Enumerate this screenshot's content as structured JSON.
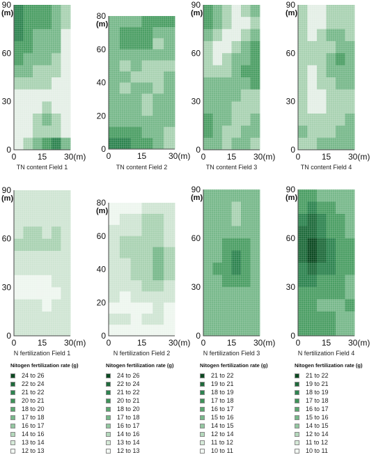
{
  "chart_data": [
    {
      "type": "heatmap",
      "caption": "TN content Field 1",
      "x_ticks": [
        "0",
        "15",
        "30(m)"
      ],
      "y_ticks": [
        "0",
        "30",
        "60",
        "90"
      ],
      "y_unit": "(m)",
      "ylim": [
        0,
        90
      ],
      "xlim": [
        0,
        30
      ],
      "palette": [
        "#1f6b3c",
        "#2e8450",
        "#4b9e64",
        "#77b88a",
        "#a9d2b2",
        "#e4efe6"
      ],
      "grid": [
        [
          1,
          2,
          2,
          2,
          3,
          4
        ],
        [
          1,
          2,
          2,
          2,
          3,
          4
        ],
        [
          1,
          2,
          3,
          3,
          3,
          5
        ],
        [
          2,
          2,
          3,
          3,
          3,
          5
        ],
        [
          2,
          3,
          3,
          3,
          4,
          5
        ],
        [
          3,
          3,
          4,
          4,
          4,
          5
        ],
        [
          4,
          4,
          4,
          4,
          5,
          5
        ],
        [
          5,
          5,
          5,
          5,
          5,
          5
        ],
        [
          5,
          5,
          5,
          4,
          5,
          5
        ],
        [
          5,
          5,
          4,
          3,
          4,
          5
        ],
        [
          5,
          5,
          4,
          4,
          4,
          5
        ],
        [
          5,
          4,
          3,
          2,
          1,
          3
        ]
      ]
    },
    {
      "type": "heatmap",
      "caption": "TN content Field 2",
      "x_ticks": [
        "0",
        "15",
        "30(m)"
      ],
      "y_ticks": [
        "0",
        "20",
        "40",
        "60",
        "80"
      ],
      "y_unit": "(m)",
      "ylim": [
        0,
        80
      ],
      "xlim": [
        0,
        30
      ],
      "palette": [
        "#1f6b3c",
        "#2e8450",
        "#4b9e64",
        "#77b88a",
        "#a9d2b2",
        "#e4efe6"
      ],
      "grid": [
        [
          3,
          3,
          3,
          2,
          2,
          2
        ],
        [
          3,
          2,
          2,
          2,
          3,
          3
        ],
        [
          3,
          2,
          2,
          2,
          4,
          3
        ],
        [
          3,
          3,
          3,
          3,
          3,
          3
        ],
        [
          3,
          4,
          3,
          4,
          4,
          4
        ],
        [
          3,
          3,
          4,
          4,
          4,
          3
        ],
        [
          3,
          4,
          3,
          3,
          4,
          3
        ],
        [
          3,
          3,
          3,
          4,
          3,
          3
        ],
        [
          3,
          3,
          3,
          4,
          3,
          3
        ],
        [
          3,
          3,
          3,
          3,
          3,
          3
        ],
        [
          2,
          2,
          2,
          3,
          3,
          4
        ],
        [
          1,
          1,
          2,
          2,
          3,
          4
        ]
      ]
    },
    {
      "type": "heatmap",
      "caption": "TN content Field 3",
      "x_ticks": [
        "0",
        "15",
        "30(m)"
      ],
      "y_ticks": [
        "0",
        "30",
        "60",
        "90"
      ],
      "y_unit": "(m)",
      "ylim": [
        0,
        90
      ],
      "xlim": [
        0,
        30
      ],
      "palette": [
        "#1f6b3c",
        "#2e8450",
        "#4b9e64",
        "#77b88a",
        "#a9d2b2",
        "#e4efe6"
      ],
      "grid": [
        [
          2,
          3,
          4,
          5,
          4,
          3
        ],
        [
          2,
          3,
          4,
          5,
          5,
          4
        ],
        [
          3,
          4,
          5,
          5,
          4,
          3
        ],
        [
          4,
          5,
          5,
          4,
          3,
          2
        ],
        [
          4,
          5,
          4,
          3,
          3,
          2
        ],
        [
          4,
          4,
          4,
          3,
          2,
          2
        ],
        [
          3,
          3,
          3,
          3,
          3,
          2
        ],
        [
          3,
          3,
          3,
          3,
          4,
          4
        ],
        [
          3,
          3,
          3,
          4,
          4,
          4
        ],
        [
          2,
          3,
          3,
          4,
          4,
          3
        ],
        [
          2,
          3,
          4,
          4,
          3,
          3
        ],
        [
          3,
          3,
          4,
          3,
          3,
          4
        ]
      ]
    },
    {
      "type": "heatmap",
      "caption": "TN content Field 4",
      "x_ticks": [
        "0",
        "15",
        "30(m)"
      ],
      "y_ticks": [
        "0",
        "30",
        "60",
        "90"
      ],
      "y_unit": "(m)",
      "ylim": [
        0,
        90
      ],
      "xlim": [
        0,
        30
      ],
      "palette": [
        "#1f6b3c",
        "#2e8450",
        "#4b9e64",
        "#77b88a",
        "#a9d2b2",
        "#e4efe6"
      ],
      "grid": [
        [
          4,
          5,
          5,
          4,
          4,
          4
        ],
        [
          4,
          5,
          5,
          4,
          4,
          4
        ],
        [
          4,
          5,
          4,
          3,
          3,
          4
        ],
        [
          4,
          4,
          4,
          4,
          3,
          3
        ],
        [
          4,
          4,
          4,
          3,
          2,
          3
        ],
        [
          4,
          5,
          4,
          3,
          3,
          3
        ],
        [
          4,
          5,
          4,
          4,
          3,
          3
        ],
        [
          4,
          5,
          5,
          4,
          4,
          4
        ],
        [
          4,
          5,
          5,
          4,
          4,
          4
        ],
        [
          4,
          4,
          4,
          4,
          4,
          3
        ],
        [
          3,
          4,
          4,
          4,
          3,
          3
        ],
        [
          4,
          4,
          3,
          3,
          3,
          3
        ]
      ]
    },
    {
      "type": "heatmap",
      "caption": "N fertilization Field 1",
      "x_ticks": [
        "0",
        "15",
        "30(m)"
      ],
      "y_ticks": [
        "0",
        "30",
        "60",
        "90"
      ],
      "y_unit": "(m)",
      "ylim": [
        0,
        90
      ],
      "xlim": [
        0,
        30
      ],
      "palette": [
        "#0c4a22",
        "#1f6b3c",
        "#2e8450",
        "#4b9e64",
        "#77b88a",
        "#a9d2b2",
        "#cfe5d3",
        "#eef6ef"
      ],
      "grid": [
        [
          6,
          6,
          6,
          6,
          6,
          6
        ],
        [
          6,
          6,
          6,
          6,
          6,
          6
        ],
        [
          6,
          6,
          6,
          6,
          6,
          6
        ],
        [
          6,
          5,
          5,
          6,
          5,
          6
        ],
        [
          5,
          5,
          5,
          5,
          5,
          6
        ],
        [
          6,
          6,
          6,
          6,
          6,
          6
        ],
        [
          6,
          6,
          6,
          6,
          6,
          6
        ],
        [
          7,
          7,
          7,
          7,
          6,
          6
        ],
        [
          7,
          7,
          7,
          7,
          7,
          6
        ],
        [
          6,
          6,
          6,
          7,
          6,
          6
        ],
        [
          6,
          6,
          6,
          6,
          6,
          6
        ],
        [
          6,
          6,
          6,
          6,
          6,
          6
        ]
      ]
    },
    {
      "type": "heatmap",
      "caption": "N fertilization Field 2",
      "x_ticks": [
        "0",
        "15",
        "30(m)"
      ],
      "y_ticks": [
        "0",
        "20",
        "40",
        "60",
        "80"
      ],
      "y_unit": "(m)",
      "ylim": [
        0,
        80
      ],
      "xlim": [
        0,
        30
      ],
      "palette": [
        "#0c4a22",
        "#1f6b3c",
        "#2e8450",
        "#4b9e64",
        "#77b88a",
        "#a9d2b2",
        "#cfe5d3",
        "#eef6ef"
      ],
      "grid": [
        [
          7,
          7,
          7,
          6,
          6,
          6
        ],
        [
          7,
          6,
          6,
          5,
          5,
          6
        ],
        [
          6,
          6,
          6,
          5,
          5,
          6
        ],
        [
          6,
          5,
          5,
          5,
          5,
          6
        ],
        [
          6,
          5,
          5,
          5,
          4,
          5
        ],
        [
          6,
          6,
          5,
          5,
          4,
          5
        ],
        [
          6,
          6,
          5,
          5,
          4,
          5
        ],
        [
          6,
          6,
          6,
          5,
          5,
          6
        ],
        [
          6,
          7,
          6,
          6,
          6,
          6
        ],
        [
          7,
          7,
          7,
          7,
          6,
          7
        ],
        [
          6,
          6,
          7,
          6,
          6,
          7
        ],
        [
          7,
          7,
          7,
          7,
          7,
          7
        ]
      ]
    },
    {
      "type": "heatmap",
      "caption": "N fertilization Field 3",
      "x_ticks": [
        "0",
        "15",
        "30(m)"
      ],
      "y_ticks": [
        "0",
        "30",
        "60",
        "90"
      ],
      "y_unit": "(m)",
      "ylim": [
        0,
        90
      ],
      "xlim": [
        0,
        30
      ],
      "palette": [
        "#0c4a22",
        "#1f6b3c",
        "#2e8450",
        "#4b9e64",
        "#77b88a",
        "#a9d2b2",
        "#cfe5d3",
        "#eef6ef"
      ],
      "grid": [
        [
          4,
          4,
          4,
          4,
          4,
          4
        ],
        [
          4,
          4,
          4,
          5,
          4,
          4
        ],
        [
          4,
          4,
          4,
          5,
          4,
          4
        ],
        [
          4,
          4,
          4,
          4,
          4,
          4
        ],
        [
          4,
          4,
          3,
          3,
          3,
          4
        ],
        [
          4,
          4,
          3,
          2,
          3,
          4
        ],
        [
          4,
          3,
          3,
          2,
          3,
          4
        ],
        [
          4,
          4,
          3,
          3,
          3,
          4
        ],
        [
          4,
          4,
          4,
          4,
          4,
          4
        ],
        [
          4,
          4,
          4,
          4,
          4,
          4
        ],
        [
          4,
          4,
          4,
          4,
          4,
          4
        ],
        [
          4,
          4,
          4,
          4,
          4,
          4
        ]
      ]
    },
    {
      "type": "heatmap",
      "caption": "N fertilization Field 4",
      "x_ticks": [
        "0",
        "15",
        "30(m)"
      ],
      "y_ticks": [
        "0",
        "30",
        "60",
        "90"
      ],
      "y_unit": "(m)",
      "ylim": [
        0,
        90
      ],
      "xlim": [
        0,
        30
      ],
      "palette": [
        "#0c4a22",
        "#1f6b3c",
        "#2e8450",
        "#4b9e64",
        "#77b88a",
        "#a9d2b2",
        "#cfe5d3",
        "#eef6ef"
      ],
      "grid": [
        [
          3,
          3,
          4,
          4,
          4,
          4
        ],
        [
          3,
          2,
          3,
          3,
          4,
          4
        ],
        [
          2,
          1,
          2,
          3,
          3,
          4
        ],
        [
          1,
          1,
          2,
          3,
          3,
          4
        ],
        [
          1,
          0,
          1,
          2,
          3,
          3
        ],
        [
          1,
          0,
          1,
          2,
          3,
          3
        ],
        [
          2,
          1,
          2,
          2,
          3,
          3
        ],
        [
          2,
          2,
          3,
          3,
          3,
          4
        ],
        [
          3,
          3,
          3,
          3,
          3,
          4
        ],
        [
          3,
          3,
          4,
          4,
          4,
          3
        ],
        [
          3,
          3,
          3,
          3,
          4,
          4
        ],
        [
          3,
          3,
          3,
          3,
          4,
          4
        ]
      ]
    }
  ],
  "legends": [
    {
      "title": "Nitogen fertilization rate (g)",
      "items": [
        {
          "label": "24 to 26",
          "color": "#0c4a22"
        },
        {
          "label": "22 to 24",
          "color": "#1f6b3c"
        },
        {
          "label": "21 to 22",
          "color": "#2e8450"
        },
        {
          "label": "20 to 21",
          "color": "#3f935a"
        },
        {
          "label": "18 to 20",
          "color": "#5aa770"
        },
        {
          "label": "17 to 18",
          "color": "#77b88a"
        },
        {
          "label": "16 to 17",
          "color": "#94c8a1"
        },
        {
          "label": "14 to 16",
          "color": "#b4d9bc"
        },
        {
          "label": "13 to 14",
          "color": "#d6ead9"
        },
        {
          "label": "12 to 13",
          "color": "#f2f8f3"
        }
      ]
    },
    {
      "title": "Nitogen fertilization rate (g)",
      "items": [
        {
          "label": "24 to 26",
          "color": "#0c4a22"
        },
        {
          "label": "22 to 24",
          "color": "#1f6b3c"
        },
        {
          "label": "21 to 22",
          "color": "#2e8450"
        },
        {
          "label": "20 to 21",
          "color": "#3f935a"
        },
        {
          "label": "18 to 20",
          "color": "#5aa770"
        },
        {
          "label": "17 to 18",
          "color": "#77b88a"
        },
        {
          "label": "16 to 17",
          "color": "#94c8a1"
        },
        {
          "label": "14 to 16",
          "color": "#b4d9bc"
        },
        {
          "label": "13 to 14",
          "color": "#d6ead9"
        },
        {
          "label": "12 to 13",
          "color": "#f2f8f3"
        }
      ]
    },
    {
      "title": "Nitogen fertilization rate (g)",
      "items": [
        {
          "label": "21 to 22",
          "color": "#0c4a22"
        },
        {
          "label": "19 to 21",
          "color": "#1f6b3c"
        },
        {
          "label": "18 to 19",
          "color": "#2e8450"
        },
        {
          "label": "17 to 18",
          "color": "#3f935a"
        },
        {
          "label": "16 to 17",
          "color": "#5aa770"
        },
        {
          "label": "15 to 16",
          "color": "#77b88a"
        },
        {
          "label": "14 to 15",
          "color": "#94c8a1"
        },
        {
          "label": "12 to 14",
          "color": "#b4d9bc"
        },
        {
          "label": "11 to 12",
          "color": "#d6ead9"
        },
        {
          "label": "10 to 11",
          "color": "#f2f8f3"
        }
      ]
    },
    {
      "title": "Nitogen fertilization rate (g)",
      "items": [
        {
          "label": "21 to 22",
          "color": "#0c4a22"
        },
        {
          "label": "19 to 21",
          "color": "#1f6b3c"
        },
        {
          "label": "18 to 19",
          "color": "#2e8450"
        },
        {
          "label": "17 to 18",
          "color": "#3f935a"
        },
        {
          "label": "16 to 17",
          "color": "#5aa770"
        },
        {
          "label": "15 to 16",
          "color": "#77b88a"
        },
        {
          "label": "14 to 15",
          "color": "#94c8a1"
        },
        {
          "label": "12 to 14",
          "color": "#b4d9bc"
        },
        {
          "label": "11 to 12",
          "color": "#d6ead9"
        },
        {
          "label": "10 to 11",
          "color": "#f2f8f3"
        }
      ]
    }
  ]
}
